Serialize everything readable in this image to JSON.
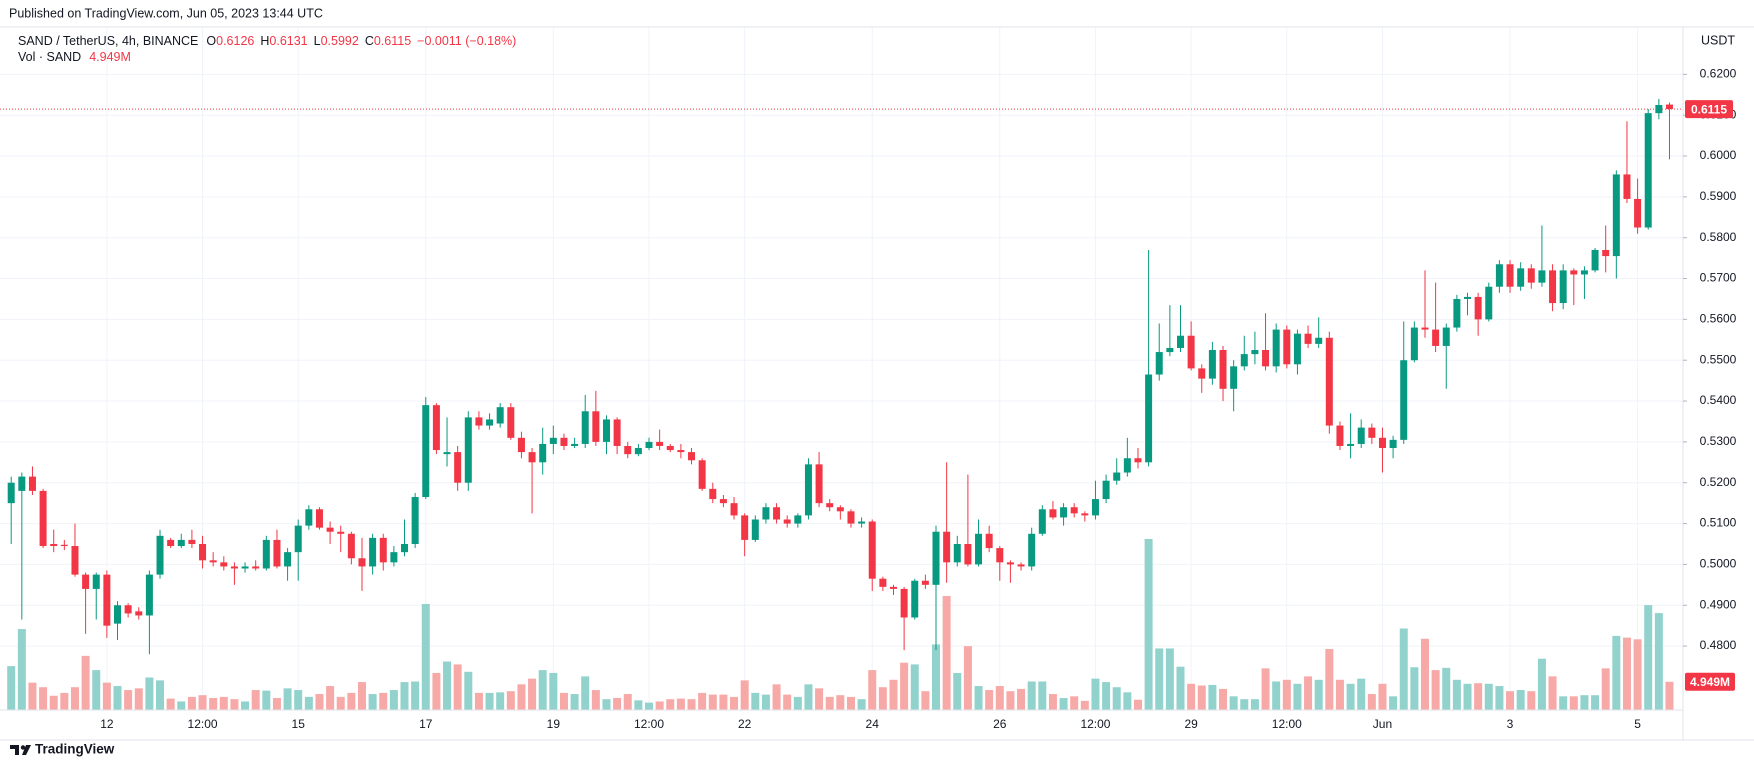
{
  "published": "Published on TradingView.com, Jun 05, 2023 13:44 UTC",
  "brand": "TradingView",
  "chart_data": {
    "type": "candlestick",
    "symbol": "SAND / TetherUS, 4h, BINANCE",
    "ohlc_labels": [
      "O",
      "H",
      "L",
      "C"
    ],
    "change": "−0.0011 (−0.18%)",
    "volume_name": "Vol · SAND",
    "currency": "USDT",
    "up_color": "#089981",
    "down_color": "#f23645",
    "volume_up_color": "#92d2cc",
    "volume_down_color": "#f7a9a7",
    "ylim": [
      0.457,
      0.6316
    ],
    "yticks": [
      {
        "value": 0.48,
        "label": "0.4800"
      },
      {
        "value": 0.49,
        "label": "0.4900"
      },
      {
        "value": 0.5,
        "label": "0.5000"
      },
      {
        "value": 0.51,
        "label": "0.5100"
      },
      {
        "value": 0.52,
        "label": "0.5200"
      },
      {
        "value": 0.53,
        "label": "0.5300"
      },
      {
        "value": 0.54,
        "label": "0.5400"
      },
      {
        "value": 0.55,
        "label": "0.5500"
      },
      {
        "value": 0.56,
        "label": "0.5600"
      },
      {
        "value": 0.57,
        "label": "0.5700"
      },
      {
        "value": 0.58,
        "label": "0.5800"
      },
      {
        "value": 0.59,
        "label": "0.5900"
      },
      {
        "value": 0.6,
        "label": "0.6000"
      },
      {
        "value": 0.61,
        "label": "0.6100"
      },
      {
        "value": 0.62,
        "label": "0.6200"
      }
    ],
    "grid": true,
    "x": [
      null,
      null,
      null,
      null,
      null,
      null,
      null,
      null,
      null,
      "12",
      null,
      null,
      null,
      null,
      null,
      null,
      null,
      null,
      "12:00",
      null,
      null,
      null,
      null,
      null,
      null,
      null,
      null,
      "15",
      null,
      null,
      null,
      null,
      null,
      null,
      null,
      null,
      null,
      null,
      null,
      "17",
      null,
      null,
      null,
      null,
      null,
      null,
      null,
      null,
      null,
      null,
      null,
      "19",
      null,
      null,
      null,
      null,
      null,
      null,
      null,
      null,
      "12:00",
      null,
      null,
      null,
      null,
      null,
      null,
      null,
      null,
      "22",
      null,
      null,
      null,
      null,
      null,
      null,
      null,
      null,
      null,
      null,
      null,
      "24",
      null,
      null,
      null,
      null,
      null,
      null,
      null,
      null,
      null,
      null,
      null,
      "26",
      null,
      null,
      null,
      null,
      null,
      null,
      null,
      null,
      "12:00",
      null,
      null,
      null,
      null,
      null,
      null,
      null,
      null,
      "29",
      null,
      null,
      null,
      null,
      null,
      null,
      null,
      null,
      "12:00",
      null,
      null,
      null,
      null,
      null,
      null,
      null,
      null,
      "Jun",
      null,
      null,
      null,
      null,
      null,
      null,
      null,
      null,
      null,
      null,
      null,
      "3",
      null,
      null,
      null,
      null,
      null,
      null,
      null,
      null,
      null,
      null,
      null,
      "5",
      null,
      null,
      null
    ],
    "open": [
      0.515,
      0.518,
      0.5215,
      0.518,
      0.505,
      0.5048,
      0.5045,
      0.4975,
      0.494,
      0.4975,
      0.4855,
      0.49,
      0.4885,
      0.4875,
      0.4975,
      0.506,
      0.5045,
      0.506,
      0.505,
      0.501,
      0.5005,
      0.4995,
      0.499,
      0.4995,
      0.499,
      0.506,
      0.4995,
      0.503,
      0.5095,
      0.5135,
      0.509,
      0.508,
      0.5075,
      0.5015,
      0.4995,
      0.5065,
      0.5005,
      0.503,
      0.505,
      0.5165,
      0.539,
      0.527,
      0.5275,
      0.52,
      0.536,
      0.534,
      0.5345,
      0.5385,
      0.531,
      0.5275,
      0.525,
      0.5295,
      0.531,
      0.529,
      0.5295,
      0.5375,
      0.53,
      0.5355,
      0.529,
      0.527,
      0.5285,
      0.53,
      0.529,
      0.528,
      0.5275,
      0.5255,
      0.5185,
      0.516,
      0.515,
      0.512,
      0.506,
      0.511,
      0.514,
      0.511,
      0.51,
      0.512,
      0.5245,
      0.515,
      0.514,
      0.513,
      0.51,
      0.5105,
      0.4965,
      0.4945,
      0.494,
      0.487,
      0.496,
      0.495,
      0.508,
      0.5005,
      0.505,
      0.5,
      0.5075,
      0.504,
      0.5005,
      0.5,
      0.4995,
      0.5075,
      0.5135,
      0.5115,
      0.514,
      0.5125,
      0.512,
      0.516,
      0.5205,
      0.5225,
      0.526,
      0.525,
      0.5465,
      0.552,
      0.553,
      0.556,
      0.548,
      0.5455,
      0.5525,
      0.543,
      0.5485,
      0.5515,
      0.5525,
      0.5485,
      0.5575,
      0.549,
      0.5565,
      0.554,
      0.5555,
      0.534,
      0.529,
      0.5295,
      0.5335,
      0.531,
      0.5285,
      0.5305,
      0.55,
      0.558,
      0.5575,
      0.5535,
      0.558,
      0.565,
      0.5655,
      0.56,
      0.568,
      0.5735,
      0.568,
      0.5725,
      0.569,
      0.572,
      0.564,
      0.572,
      0.571,
      0.572,
      0.577,
      0.5755,
      0.5955,
      0.5895,
      0.5825,
      0.6105,
      0.6126
    ],
    "high": [
      0.5215,
      0.5225,
      0.524,
      0.5185,
      0.5085,
      0.506,
      0.51,
      0.498,
      0.498,
      0.4985,
      0.491,
      0.4905,
      0.4895,
      0.4985,
      0.5085,
      0.5065,
      0.5075,
      0.5085,
      0.507,
      0.503,
      0.502,
      0.5005,
      0.5005,
      0.501,
      0.507,
      0.5085,
      0.504,
      0.511,
      0.5145,
      0.514,
      0.5105,
      0.5095,
      0.508,
      0.5065,
      0.5075,
      0.5075,
      0.5045,
      0.511,
      0.5175,
      0.541,
      0.5395,
      0.536,
      0.529,
      0.5375,
      0.5375,
      0.537,
      0.5395,
      0.5395,
      0.5325,
      0.5285,
      0.5335,
      0.534,
      0.532,
      0.531,
      0.5415,
      0.5425,
      0.5365,
      0.536,
      0.53,
      0.5295,
      0.531,
      0.533,
      0.5295,
      0.5295,
      0.5285,
      0.526,
      0.52,
      0.517,
      0.5165,
      0.5125,
      0.512,
      0.515,
      0.515,
      0.512,
      0.5125,
      0.526,
      0.5275,
      0.516,
      0.5145,
      0.5135,
      0.5115,
      0.511,
      0.497,
      0.495,
      0.4945,
      0.4965,
      0.4975,
      0.5095,
      0.525,
      0.507,
      0.522,
      0.511,
      0.5095,
      0.5045,
      0.501,
      0.5005,
      0.509,
      0.5145,
      0.5155,
      0.515,
      0.515,
      0.513,
      0.5205,
      0.522,
      0.526,
      0.531,
      0.5285,
      0.577,
      0.559,
      0.5635,
      0.5635,
      0.5595,
      0.549,
      0.5545,
      0.5535,
      0.55,
      0.556,
      0.557,
      0.5615,
      0.559,
      0.5585,
      0.5575,
      0.5585,
      0.5605,
      0.557,
      0.535,
      0.537,
      0.5355,
      0.5345,
      0.5335,
      0.5315,
      0.5595,
      0.5595,
      0.572,
      0.569,
      0.559,
      0.566,
      0.5665,
      0.5665,
      0.569,
      0.5745,
      0.5745,
      0.574,
      0.5735,
      0.583,
      0.5735,
      0.5735,
      0.5725,
      0.573,
      0.5775,
      0.583,
      0.5965,
      0.6085,
      0.5945,
      0.6115,
      0.614,
      0.6131
    ],
    "low": [
      0.505,
      0.4865,
      0.517,
      0.504,
      0.503,
      0.5035,
      0.497,
      0.483,
      0.4865,
      0.482,
      0.4815,
      0.487,
      0.4865,
      0.478,
      0.4965,
      0.504,
      0.504,
      0.504,
      0.499,
      0.4995,
      0.4985,
      0.495,
      0.498,
      0.4985,
      0.4985,
      0.499,
      0.496,
      0.496,
      0.5085,
      0.5085,
      0.505,
      0.503,
      0.5,
      0.4935,
      0.4975,
      0.4985,
      0.4995,
      0.502,
      0.504,
      0.516,
      0.527,
      0.524,
      0.518,
      0.518,
      0.533,
      0.533,
      0.5335,
      0.5305,
      0.526,
      0.5125,
      0.522,
      0.527,
      0.528,
      0.5285,
      0.5285,
      0.529,
      0.527,
      0.527,
      0.526,
      0.5265,
      0.528,
      0.528,
      0.5275,
      0.526,
      0.5245,
      0.518,
      0.515,
      0.514,
      0.511,
      0.502,
      0.5055,
      0.51,
      0.51,
      0.509,
      0.509,
      0.511,
      0.514,
      0.513,
      0.511,
      0.509,
      0.509,
      0.4935,
      0.4935,
      0.4925,
      0.479,
      0.4865,
      0.494,
      0.479,
      0.4955,
      0.4995,
      0.4995,
      0.4995,
      0.503,
      0.496,
      0.4955,
      0.4985,
      0.4985,
      0.507,
      0.511,
      0.5095,
      0.5115,
      0.5105,
      0.511,
      0.515,
      0.5195,
      0.5215,
      0.5235,
      0.524,
      0.545,
      0.551,
      0.552,
      0.5475,
      0.542,
      0.544,
      0.54,
      0.5375,
      0.5475,
      0.549,
      0.5475,
      0.547,
      0.548,
      0.5465,
      0.553,
      0.553,
      0.532,
      0.528,
      0.526,
      0.5285,
      0.5295,
      0.5225,
      0.526,
      0.5295,
      0.5495,
      0.5555,
      0.552,
      0.543,
      0.557,
      0.561,
      0.556,
      0.5595,
      0.5665,
      0.5665,
      0.567,
      0.5675,
      0.568,
      0.562,
      0.5625,
      0.5635,
      0.565,
      0.5715,
      0.5715,
      0.57,
      0.5885,
      0.581,
      0.582,
      0.609,
      0.5992
    ],
    "close": [
      0.52,
      0.5215,
      0.518,
      0.5045,
      0.5045,
      0.5045,
      0.4975,
      0.494,
      0.4975,
      0.485,
      0.49,
      0.488,
      0.4875,
      0.4975,
      0.507,
      0.5045,
      0.506,
      0.505,
      0.501,
      0.5005,
      0.4995,
      0.499,
      0.4995,
      0.499,
      0.506,
      0.4995,
      0.503,
      0.5095,
      0.5135,
      0.509,
      0.508,
      0.5075,
      0.5015,
      0.4995,
      0.5065,
      0.5005,
      0.503,
      0.505,
      0.5165,
      0.539,
      0.528,
      0.5275,
      0.52,
      0.536,
      0.534,
      0.5355,
      0.5385,
      0.531,
      0.5275,
      0.525,
      0.5295,
      0.531,
      0.529,
      0.5295,
      0.5375,
      0.53,
      0.5355,
      0.529,
      0.527,
      0.5285,
      0.53,
      0.529,
      0.528,
      0.5275,
      0.5255,
      0.5185,
      0.516,
      0.515,
      0.512,
      0.506,
      0.511,
      0.514,
      0.511,
      0.51,
      0.512,
      0.5245,
      0.515,
      0.514,
      0.513,
      0.51,
      0.5105,
      0.4965,
      0.4945,
      0.494,
      0.487,
      0.496,
      0.495,
      0.508,
      0.5005,
      0.505,
      0.5,
      0.5075,
      0.504,
      0.5005,
      0.5,
      0.4995,
      0.5075,
      0.5135,
      0.5115,
      0.514,
      0.5125,
      0.512,
      0.516,
      0.5205,
      0.5225,
      0.526,
      0.525,
      0.5465,
      0.552,
      0.553,
      0.556,
      0.548,
      0.5455,
      0.5525,
      0.543,
      0.5485,
      0.5515,
      0.5525,
      0.5485,
      0.5575,
      0.549,
      0.5565,
      0.554,
      0.5555,
      0.534,
      0.529,
      0.5295,
      0.5335,
      0.531,
      0.5285,
      0.5305,
      0.55,
      0.558,
      0.5575,
      0.5535,
      0.558,
      0.565,
      0.5655,
      0.56,
      0.568,
      0.5735,
      0.568,
      0.5725,
      0.569,
      0.572,
      0.564,
      0.572,
      0.571,
      0.572,
      0.577,
      0.5755,
      0.5955,
      0.5895,
      0.5825,
      0.6105,
      0.6125,
      0.6115
    ],
    "volume": {
      "last_value_label": "4.949M",
      "values": [
        7.7,
        14.2,
        4.8,
        4,
        2.5,
        3,
        4,
        9.5,
        7,
        4.8,
        4.2,
        3.5,
        3.8,
        5.7,
        5.2,
        2,
        1.5,
        2.3,
        2.6,
        2.1,
        2.3,
        1.9,
        1.5,
        3.5,
        3.4,
        2.1,
        3.8,
        3.5,
        2.3,
        2.8,
        4.2,
        2.3,
        3,
        4.9,
        2.8,
        3,
        3.5,
        4.9,
        5,
        18.6,
        6.5,
        8.5,
        8,
        6.7,
        3,
        3,
        3.1,
        3.3,
        4.5,
        5.5,
        7,
        6.5,
        3,
        2.8,
        5.9,
        3.5,
        1.9,
        2.1,
        2.8,
        1.7,
        1.3,
        1.5,
        1.9,
        2,
        1.9,
        3,
        2.7,
        2.7,
        2.3,
        5.2,
        3,
        2.7,
        4.5,
        2.7,
        2.3,
        4.5,
        3.8,
        2.3,
        2.6,
        2.3,
        1.9,
        7,
        4,
        5.3,
        8.3,
        8,
        3.3,
        11.5,
        20,
        6.5,
        11.2,
        4.2,
        3.5,
        4.2,
        3.3,
        3.7,
        5,
        5,
        2.8,
        2.1,
        2.4,
        1.6,
        5.5,
        4.9,
        4,
        3.1,
        1.8,
        30,
        10.8,
        10.8,
        7.6,
        4.6,
        4.3,
        4.4,
        3.7,
        2.4,
        1.9,
        1.9,
        7.3,
        5,
        5.3,
        4.6,
        5.9,
        5.3,
        10.7,
        5.3,
        4.6,
        5.5,
        2.8,
        4.6,
        2.4,
        14.3,
        7.5,
        12.5,
        7,
        7.4,
        5.3,
        4.6,
        4.7,
        4.6,
        4.2,
        3.3,
        3.5,
        3.3,
        9,
        5.9,
        2.4,
        2.4,
        2.6,
        2.6,
        7.3,
        13,
        12.7,
        12.4,
        18.4,
        17,
        4.949
      ]
    }
  }
}
